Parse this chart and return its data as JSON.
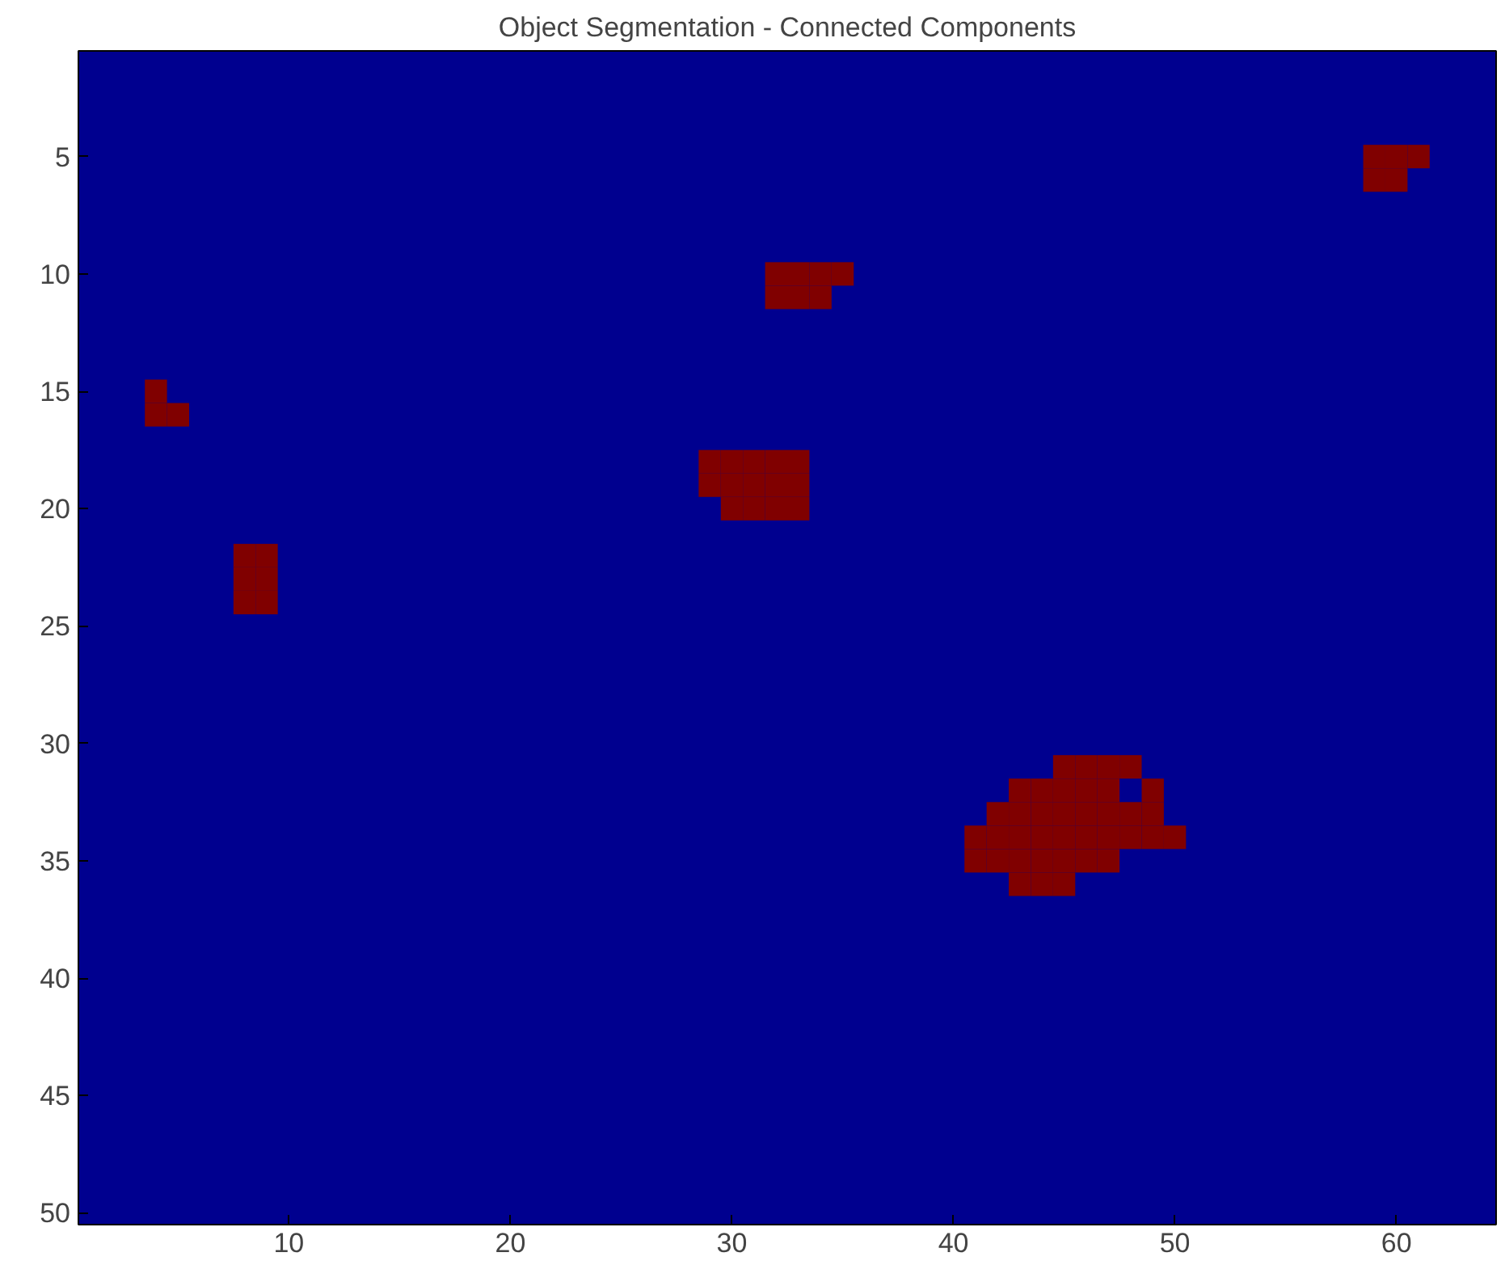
{
  "chart_data": {
    "type": "scatter",
    "title": "Object Segmentation - Connected Components",
    "marker": "square",
    "grid": false,
    "xlim": [
      0.5,
      64.5
    ],
    "ylim": [
      50.5,
      0.5
    ],
    "xticks": [
      10,
      20,
      30,
      40,
      50,
      60
    ],
    "yticks": [
      5,
      10,
      15,
      20,
      25,
      30,
      35,
      40,
      45,
      50
    ],
    "series": [
      {
        "color": "#800000",
        "x": [
          59,
          60,
          61,
          59,
          60,
          32,
          33,
          34,
          35,
          32,
          33,
          34,
          4,
          4,
          5,
          29,
          30,
          31,
          32,
          33,
          29,
          30,
          31,
          32,
          33,
          30,
          31,
          32,
          33,
          8,
          9,
          8,
          9,
          8,
          9,
          45,
          46,
          47,
          48,
          43,
          44,
          45,
          46,
          47,
          49,
          42,
          43,
          44,
          45,
          46,
          47,
          48,
          49,
          41,
          42,
          43,
          44,
          45,
          46,
          47,
          48,
          49,
          50,
          41,
          42,
          43,
          44,
          45,
          46,
          47,
          43,
          44,
          45
        ],
        "values": [
          5,
          5,
          5,
          6,
          6,
          10,
          10,
          10,
          10,
          11,
          11,
          11,
          15,
          16,
          16,
          18,
          18,
          18,
          18,
          18,
          19,
          19,
          19,
          19,
          19,
          20,
          20,
          20,
          20,
          22,
          22,
          23,
          23,
          24,
          24,
          31,
          31,
          31,
          31,
          32,
          32,
          32,
          32,
          32,
          32,
          33,
          33,
          33,
          33,
          33,
          33,
          33,
          33,
          34,
          34,
          34,
          34,
          34,
          34,
          34,
          34,
          34,
          34,
          35,
          35,
          35,
          35,
          35,
          35,
          35,
          36,
          36,
          36
        ]
      }
    ]
  }
}
